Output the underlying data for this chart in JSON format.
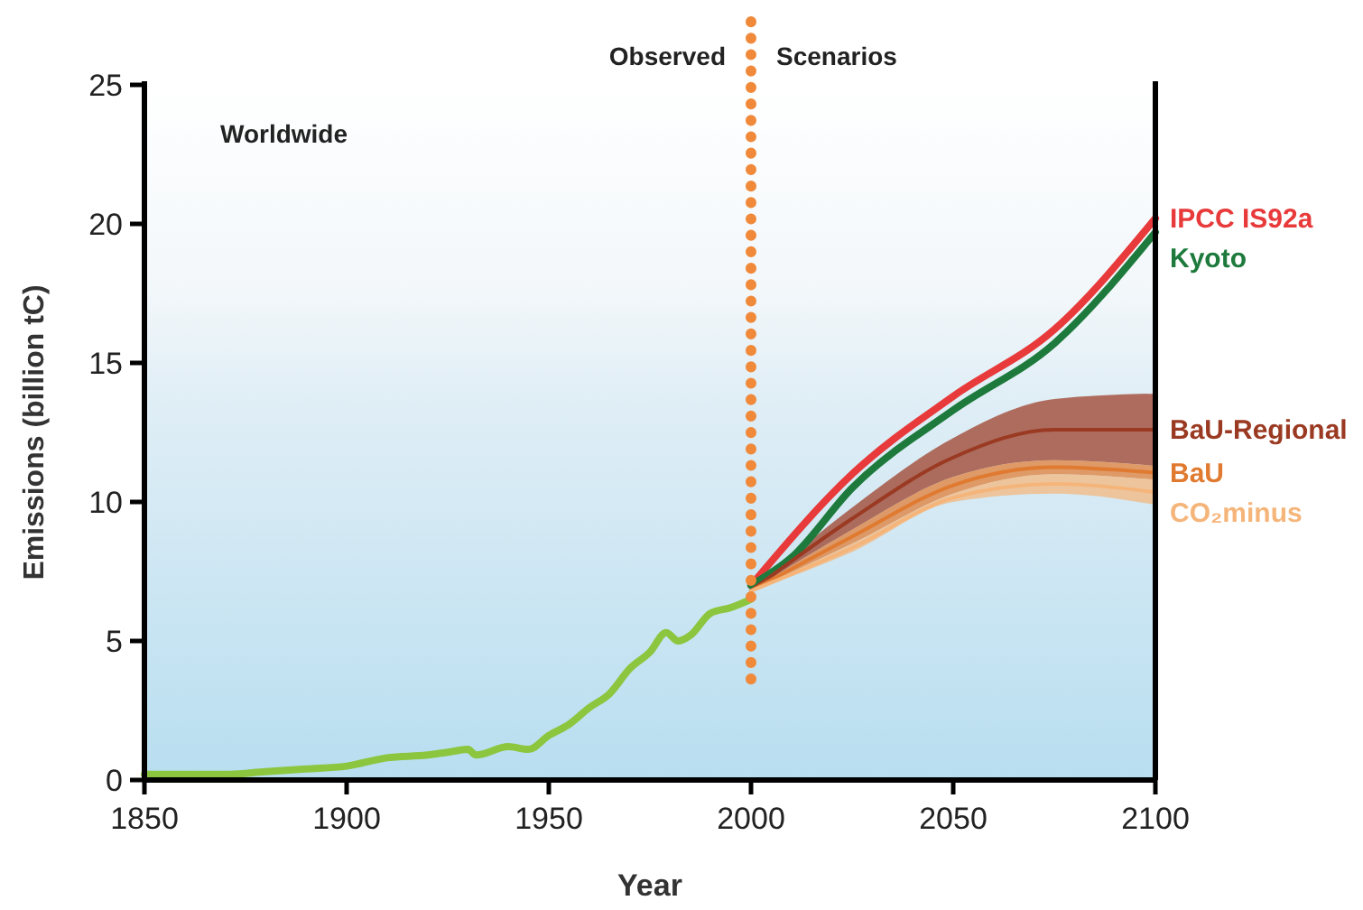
{
  "chart_data": {
    "type": "line",
    "xlabel": "Year",
    "ylabel": "Emissions (billion tC)",
    "xlim": [
      1850,
      2100
    ],
    "ylim": [
      0,
      25
    ],
    "xticks": [
      1850,
      1900,
      1950,
      2000,
      2050,
      2100
    ],
    "yticks": [
      0,
      5,
      10,
      15,
      20,
      25
    ],
    "grid": false,
    "marker": "none",
    "line_style": "solid",
    "annotations": [
      "Worldwide",
      "Observed",
      "Scenarios"
    ],
    "ref_lines": [
      {
        "axis": "x",
        "value": 2000,
        "label": null,
        "color": "#f08a3a",
        "line_style": "dotted"
      }
    ],
    "series": [
      {
        "color": "#8cc63f",
        "x": [
          1850,
          1860,
          1870,
          1880,
          1890,
          1900,
          1910,
          1920,
          1925,
          1930,
          1932,
          1940,
          1945,
          1950,
          1955,
          1960,
          1965,
          1970,
          1975,
          1979,
          1982,
          1985,
          1990,
          1995,
          2000
        ],
        "values": [
          0.2,
          0.2,
          0.2,
          0.3,
          0.4,
          0.5,
          0.8,
          0.9,
          1.0,
          1.1,
          0.9,
          1.2,
          1.1,
          1.6,
          2.0,
          2.6,
          3.1,
          4.0,
          4.6,
          5.3,
          5.0,
          5.2,
          6.0,
          6.2,
          6.5
        ]
      },
      {
        "name": "IPCC IS92a",
        "color": "#e83a3a",
        "x": [
          2000,
          2025,
          2050,
          2075,
          2100
        ],
        "values": [
          7.0,
          11.0,
          13.8,
          16.2,
          20.2
        ]
      },
      {
        "name": "Kyoto",
        "color": "#1e7a3c",
        "x": [
          2000,
          2010,
          2025,
          2050,
          2075,
          2100
        ],
        "values": [
          7.0,
          8.0,
          10.5,
          13.3,
          15.7,
          19.7
        ]
      },
      {
        "name": "BaU-Regional",
        "color": "#9b3a22",
        "x": [
          2000,
          2025,
          2050,
          2075,
          2100
        ],
        "values": [
          6.8,
          9.4,
          11.6,
          12.6,
          12.6
        ],
        "lower": [
          6.8,
          9.0,
          10.9,
          11.5,
          11.3
        ],
        "upper": [
          6.8,
          9.8,
          12.3,
          13.7,
          13.9
        ]
      },
      {
        "name": "BaU",
        "color": "#e07a30",
        "x": [
          2000,
          2025,
          2050,
          2075,
          2100
        ],
        "values": [
          6.8,
          8.75,
          10.6,
          11.25,
          11.05
        ],
        "lower": [
          6.8,
          8.5,
          10.3,
          11.0,
          10.8
        ],
        "upper": [
          6.8,
          9.0,
          10.9,
          11.5,
          11.3
        ]
      },
      {
        "name": "CO₂minus",
        "color": "#f5b57a",
        "x": [
          2000,
          2025,
          2050,
          2075,
          2100
        ],
        "values": [
          6.8,
          8.35,
          10.15,
          10.65,
          10.35
        ],
        "lower": [
          6.8,
          8.2,
          10.0,
          10.3,
          9.9
        ],
        "upper": [
          6.8,
          8.5,
          10.3,
          11.0,
          10.8
        ]
      }
    ]
  }
}
